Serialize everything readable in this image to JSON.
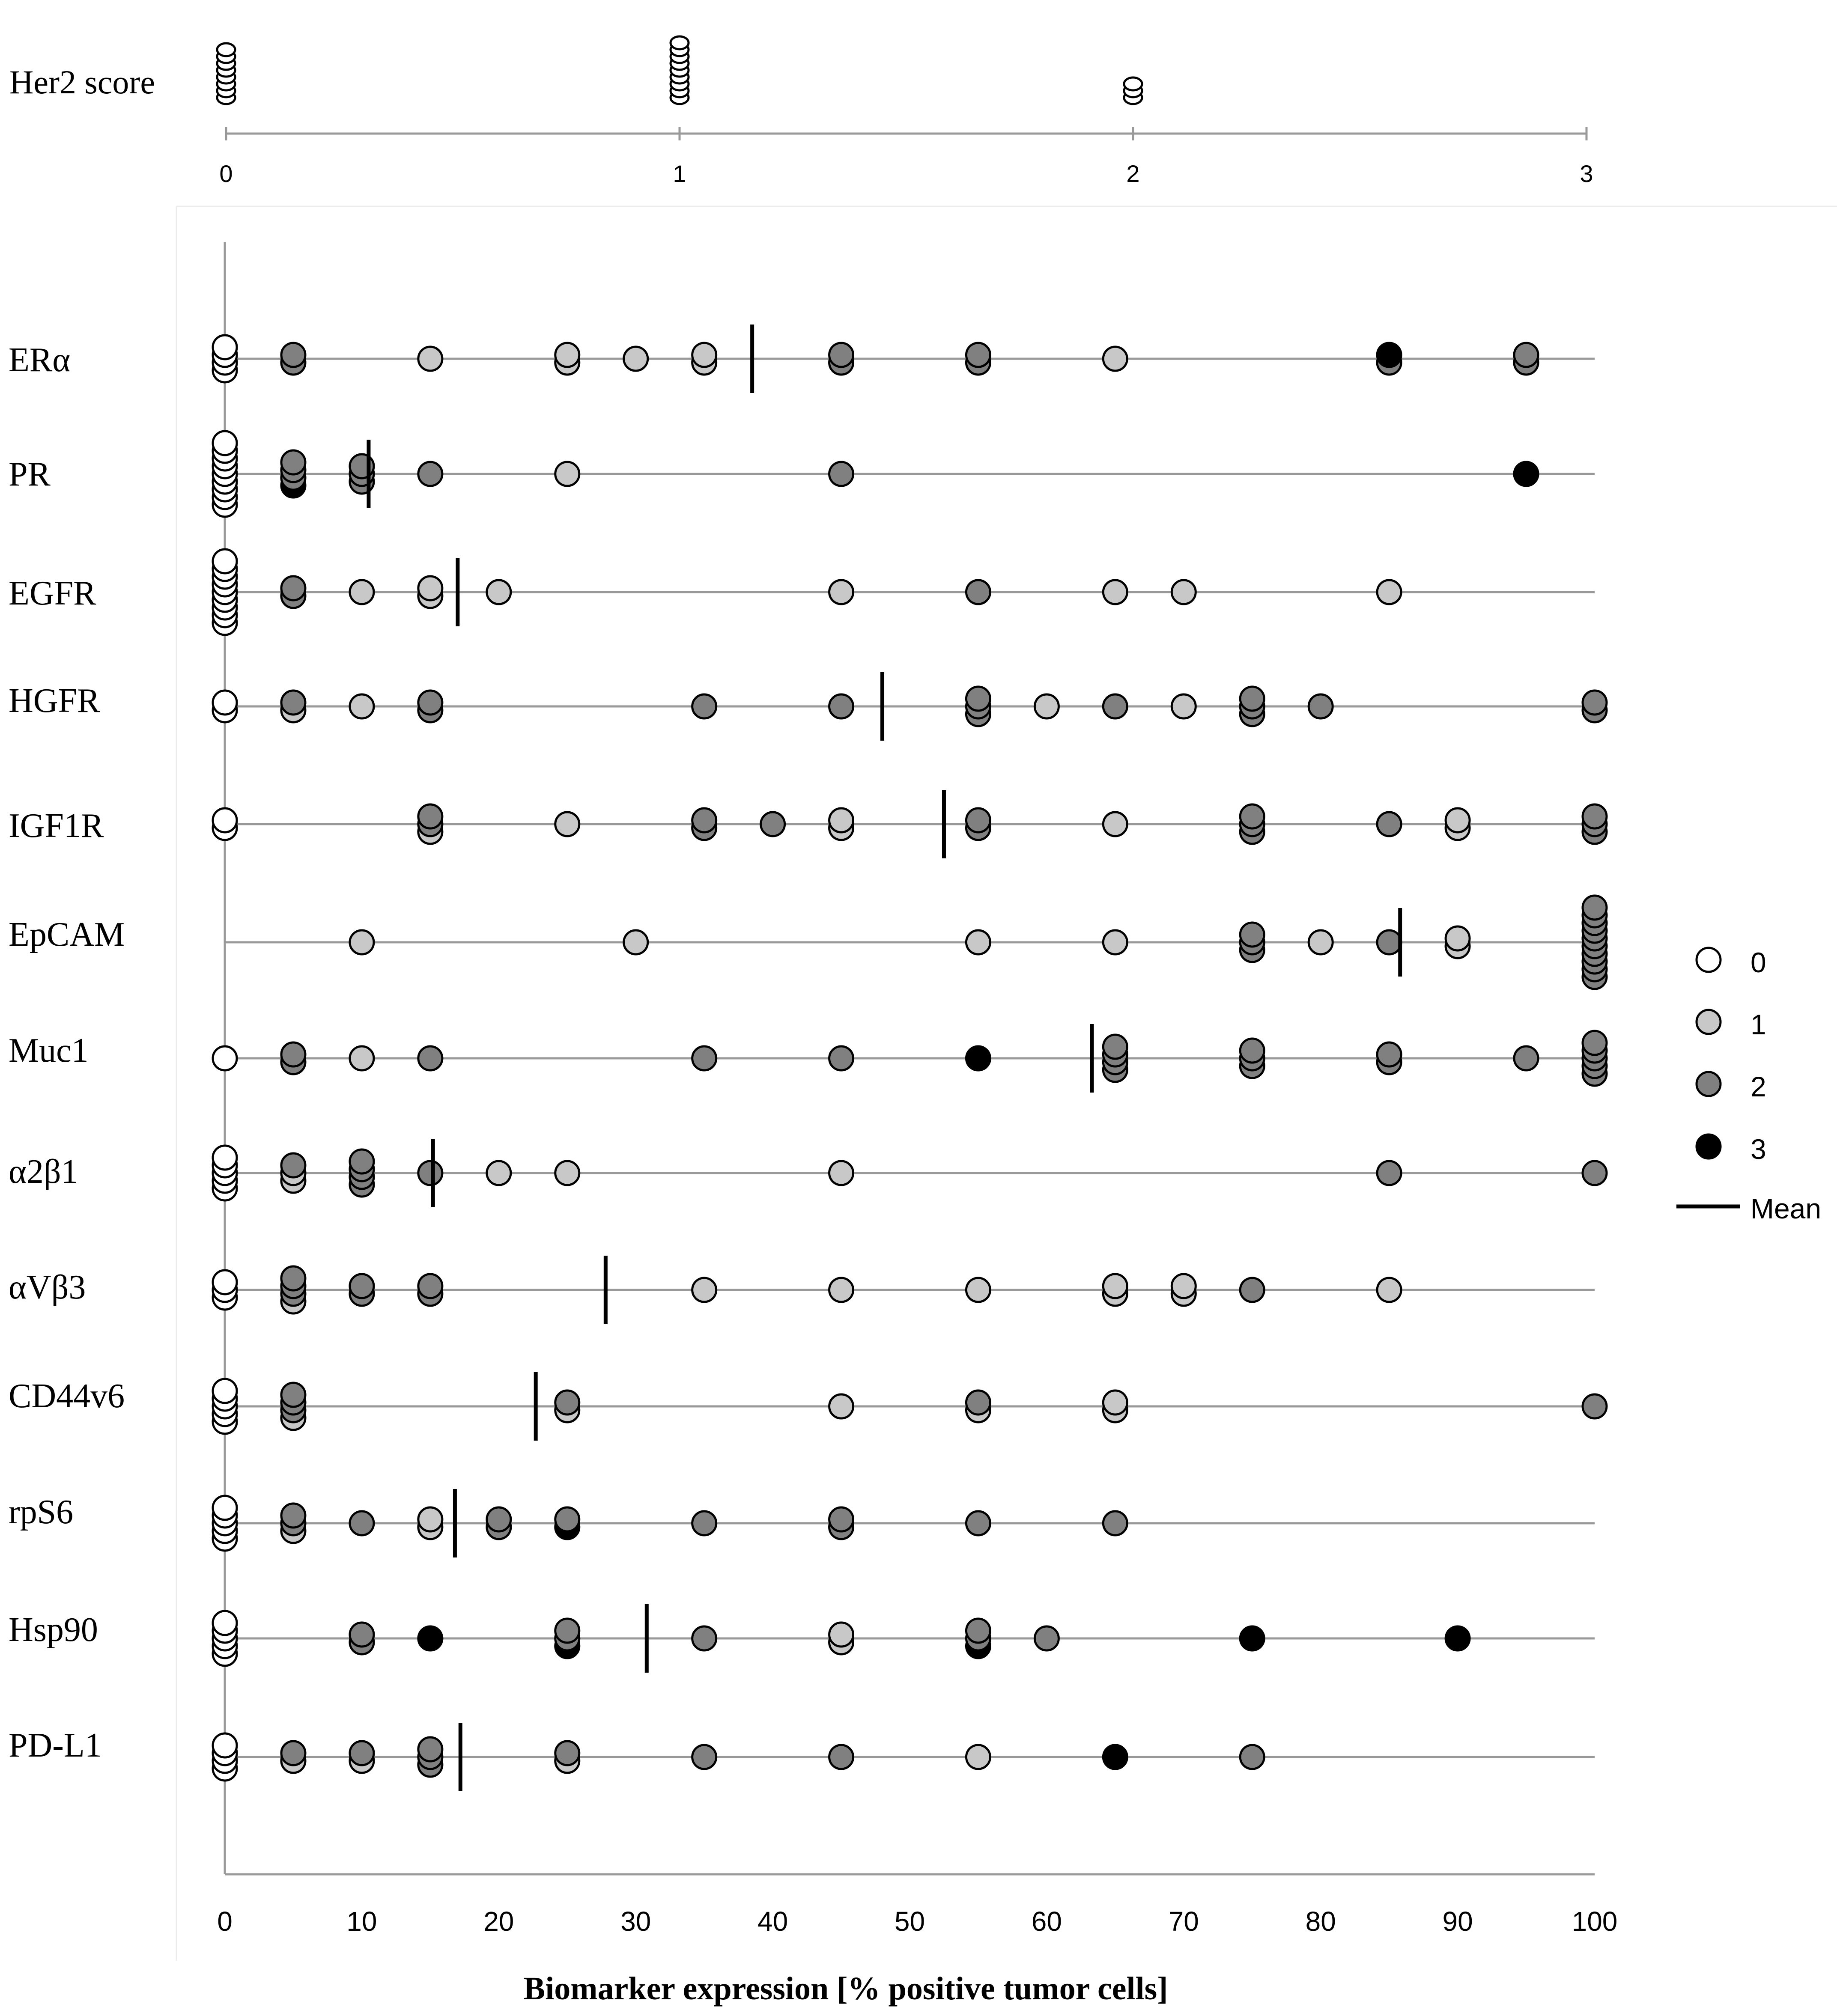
{
  "colors": {
    "score_0": "#ffffff",
    "score_1": "#c8c8c8",
    "score_2": "#808080",
    "score_3": "#000000",
    "axis": "#999999",
    "outline": "#000000"
  },
  "chart_data": [
    {
      "type": "scatter",
      "title": "Her2 score",
      "x_ticks": [
        "0",
        "1",
        "2",
        "3"
      ],
      "xlim": [
        0,
        3
      ],
      "points": [
        {
          "x": 0,
          "count": 8,
          "score": 0
        },
        {
          "x": 1,
          "count": 9,
          "score": 0
        },
        {
          "x": 2,
          "count": 3,
          "score": 0
        }
      ]
    },
    {
      "type": "scatter",
      "xlabel": "Biomarker expression [% positive tumor cells]",
      "xlim": [
        0,
        100
      ],
      "x_ticks": [
        "0",
        "10",
        "20",
        "30",
        "40",
        "50",
        "60",
        "70",
        "80",
        "90",
        "100"
      ],
      "legend": {
        "entries": [
          {
            "label": "0",
            "score": 0
          },
          {
            "label": "1",
            "score": 1
          },
          {
            "label": "2",
            "score": 2
          },
          {
            "label": "3",
            "score": 3
          }
        ],
        "mean_label": "Mean",
        "position": "right"
      },
      "series": [
        {
          "name": "ERα",
          "mean": 38.5,
          "points": [
            [
              0,
              0
            ],
            [
              0,
              0
            ],
            [
              0,
              0
            ],
            [
              0,
              0
            ],
            [
              5,
              2
            ],
            [
              5,
              2
            ],
            [
              15,
              1
            ],
            [
              25,
              1
            ],
            [
              25,
              1
            ],
            [
              30,
              1
            ],
            [
              35,
              1
            ],
            [
              35,
              1
            ],
            [
              45,
              2
            ],
            [
              45,
              2
            ],
            [
              55,
              2
            ],
            [
              55,
              2
            ],
            [
              65,
              1
            ],
            [
              85,
              2
            ],
            [
              85,
              3
            ],
            [
              95,
              2
            ],
            [
              95,
              2
            ]
          ]
        },
        {
          "name": "PR",
          "mean": 10.5,
          "points": [
            [
              0,
              0
            ],
            [
              0,
              0
            ],
            [
              0,
              0
            ],
            [
              0,
              0
            ],
            [
              0,
              0
            ],
            [
              0,
              0
            ],
            [
              0,
              0
            ],
            [
              0,
              0
            ],
            [
              0,
              0
            ],
            [
              5,
              3
            ],
            [
              5,
              2
            ],
            [
              5,
              2
            ],
            [
              5,
              2
            ],
            [
              10,
              2
            ],
            [
              10,
              2
            ],
            [
              10,
              2
            ],
            [
              15,
              2
            ],
            [
              25,
              1
            ],
            [
              45,
              2
            ],
            [
              95,
              3
            ]
          ]
        },
        {
          "name": "EGFR",
          "mean": 17,
          "points": [
            [
              0,
              0
            ],
            [
              0,
              0
            ],
            [
              0,
              0
            ],
            [
              0,
              0
            ],
            [
              0,
              0
            ],
            [
              0,
              0
            ],
            [
              0,
              0
            ],
            [
              0,
              0
            ],
            [
              0,
              0
            ],
            [
              5,
              2
            ],
            [
              5,
              2
            ],
            [
              10,
              1
            ],
            [
              15,
              1
            ],
            [
              15,
              1
            ],
            [
              20,
              1
            ],
            [
              45,
              1
            ],
            [
              55,
              2
            ],
            [
              65,
              1
            ],
            [
              70,
              1
            ],
            [
              85,
              1
            ]
          ]
        },
        {
          "name": "HGFR",
          "mean": 48,
          "points": [
            [
              0,
              0
            ],
            [
              0,
              0
            ],
            [
              5,
              1
            ],
            [
              5,
              2
            ],
            [
              10,
              1
            ],
            [
              15,
              2
            ],
            [
              15,
              2
            ],
            [
              35,
              2
            ],
            [
              45,
              2
            ],
            [
              55,
              2
            ],
            [
              55,
              2
            ],
            [
              55,
              2
            ],
            [
              60,
              1
            ],
            [
              65,
              2
            ],
            [
              70,
              1
            ],
            [
              75,
              2
            ],
            [
              75,
              2
            ],
            [
              75,
              2
            ],
            [
              80,
              2
            ],
            [
              100,
              2
            ],
            [
              100,
              2
            ]
          ]
        },
        {
          "name": "IGF1R",
          "mean": 52.5,
          "points": [
            [
              0,
              0
            ],
            [
              0,
              0
            ],
            [
              15,
              1
            ],
            [
              15,
              2
            ],
            [
              15,
              2
            ],
            [
              25,
              1
            ],
            [
              35,
              2
            ],
            [
              35,
              2
            ],
            [
              40,
              2
            ],
            [
              45,
              1
            ],
            [
              45,
              1
            ],
            [
              55,
              2
            ],
            [
              55,
              2
            ],
            [
              65,
              1
            ],
            [
              75,
              2
            ],
            [
              75,
              2
            ],
            [
              75,
              2
            ],
            [
              85,
              2
            ],
            [
              90,
              1
            ],
            [
              90,
              1
            ],
            [
              100,
              2
            ],
            [
              100,
              2
            ],
            [
              100,
              2
            ]
          ]
        },
        {
          "name": "EpCAM",
          "mean": 85.8,
          "points": [
            [
              10,
              1
            ],
            [
              30,
              1
            ],
            [
              55,
              1
            ],
            [
              65,
              1
            ],
            [
              75,
              2
            ],
            [
              75,
              2
            ],
            [
              75,
              2
            ],
            [
              80,
              1
            ],
            [
              85,
              2
            ],
            [
              90,
              1
            ],
            [
              90,
              1
            ],
            [
              100,
              2
            ],
            [
              100,
              2
            ],
            [
              100,
              2
            ],
            [
              100,
              2
            ],
            [
              100,
              2
            ],
            [
              100,
              2
            ],
            [
              100,
              2
            ],
            [
              100,
              2
            ],
            [
              100,
              2
            ],
            [
              100,
              2
            ]
          ]
        },
        {
          "name": "Muc1",
          "mean": 63.3,
          "points": [
            [
              0,
              0
            ],
            [
              5,
              2
            ],
            [
              5,
              2
            ],
            [
              10,
              1
            ],
            [
              15,
              2
            ],
            [
              35,
              2
            ],
            [
              45,
              2
            ],
            [
              55,
              3
            ],
            [
              65,
              2
            ],
            [
              65,
              2
            ],
            [
              65,
              2
            ],
            [
              65,
              2
            ],
            [
              75,
              2
            ],
            [
              75,
              2
            ],
            [
              75,
              2
            ],
            [
              85,
              2
            ],
            [
              85,
              2
            ],
            [
              95,
              2
            ],
            [
              100,
              2
            ],
            [
              100,
              2
            ],
            [
              100,
              2
            ],
            [
              100,
              2
            ],
            [
              100,
              2
            ]
          ]
        },
        {
          "name": "α2β1",
          "mean": 15.2,
          "points": [
            [
              0,
              0
            ],
            [
              0,
              0
            ],
            [
              0,
              0
            ],
            [
              0,
              0
            ],
            [
              0,
              0
            ],
            [
              5,
              1
            ],
            [
              5,
              1
            ],
            [
              5,
              2
            ],
            [
              10,
              2
            ],
            [
              10,
              2
            ],
            [
              10,
              2
            ],
            [
              10,
              2
            ],
            [
              15,
              2
            ],
            [
              20,
              1
            ],
            [
              25,
              1
            ],
            [
              45,
              1
            ],
            [
              85,
              2
            ],
            [
              100,
              2
            ]
          ]
        },
        {
          "name": "αVβ3",
          "mean": 27.8,
          "points": [
            [
              0,
              0
            ],
            [
              0,
              0
            ],
            [
              0,
              0
            ],
            [
              5,
              1
            ],
            [
              5,
              2
            ],
            [
              5,
              2
            ],
            [
              5,
              2
            ],
            [
              10,
              2
            ],
            [
              10,
              2
            ],
            [
              15,
              2
            ],
            [
              15,
              2
            ],
            [
              35,
              1
            ],
            [
              45,
              1
            ],
            [
              55,
              1
            ],
            [
              65,
              1
            ],
            [
              65,
              1
            ],
            [
              70,
              1
            ],
            [
              70,
              1
            ],
            [
              75,
              2
            ],
            [
              85,
              1
            ]
          ]
        },
        {
          "name": "CD44v6",
          "mean": 22.7,
          "points": [
            [
              0,
              0
            ],
            [
              0,
              0
            ],
            [
              0,
              0
            ],
            [
              0,
              0
            ],
            [
              0,
              0
            ],
            [
              5,
              1
            ],
            [
              5,
              2
            ],
            [
              5,
              2
            ],
            [
              5,
              2
            ],
            [
              25,
              1
            ],
            [
              25,
              2
            ],
            [
              45,
              1
            ],
            [
              55,
              1
            ],
            [
              55,
              2
            ],
            [
              65,
              1
            ],
            [
              65,
              1
            ],
            [
              100,
              2
            ]
          ]
        },
        {
          "name": "rpS6",
          "mean": 16.8,
          "points": [
            [
              0,
              0
            ],
            [
              0,
              0
            ],
            [
              0,
              0
            ],
            [
              0,
              0
            ],
            [
              0,
              0
            ],
            [
              5,
              1
            ],
            [
              5,
              2
            ],
            [
              5,
              2
            ],
            [
              10,
              2
            ],
            [
              15,
              1
            ],
            [
              15,
              1
            ],
            [
              20,
              2
            ],
            [
              20,
              2
            ],
            [
              25,
              3
            ],
            [
              25,
              2
            ],
            [
              35,
              2
            ],
            [
              45,
              2
            ],
            [
              45,
              2
            ],
            [
              55,
              2
            ],
            [
              65,
              2
            ]
          ]
        },
        {
          "name": "Hsp90",
          "mean": 30.8,
          "points": [
            [
              0,
              0
            ],
            [
              0,
              0
            ],
            [
              0,
              0
            ],
            [
              0,
              0
            ],
            [
              0,
              0
            ],
            [
              10,
              2
            ],
            [
              10,
              2
            ],
            [
              15,
              3
            ],
            [
              25,
              3
            ],
            [
              25,
              2
            ],
            [
              25,
              2
            ],
            [
              35,
              2
            ],
            [
              45,
              1
            ],
            [
              45,
              1
            ],
            [
              55,
              3
            ],
            [
              55,
              2
            ],
            [
              55,
              2
            ],
            [
              60,
              2
            ],
            [
              75,
              3
            ],
            [
              90,
              3
            ]
          ]
        },
        {
          "name": "PD-L1",
          "mean": 17.2,
          "points": [
            [
              0,
              0
            ],
            [
              0,
              0
            ],
            [
              0,
              0
            ],
            [
              0,
              0
            ],
            [
              5,
              1
            ],
            [
              5,
              2
            ],
            [
              10,
              1
            ],
            [
              10,
              2
            ],
            [
              15,
              2
            ],
            [
              15,
              2
            ],
            [
              15,
              2
            ],
            [
              25,
              1
            ],
            [
              25,
              2
            ],
            [
              35,
              2
            ],
            [
              45,
              2
            ],
            [
              55,
              1
            ],
            [
              65,
              3
            ],
            [
              75,
              2
            ]
          ]
        }
      ]
    }
  ]
}
